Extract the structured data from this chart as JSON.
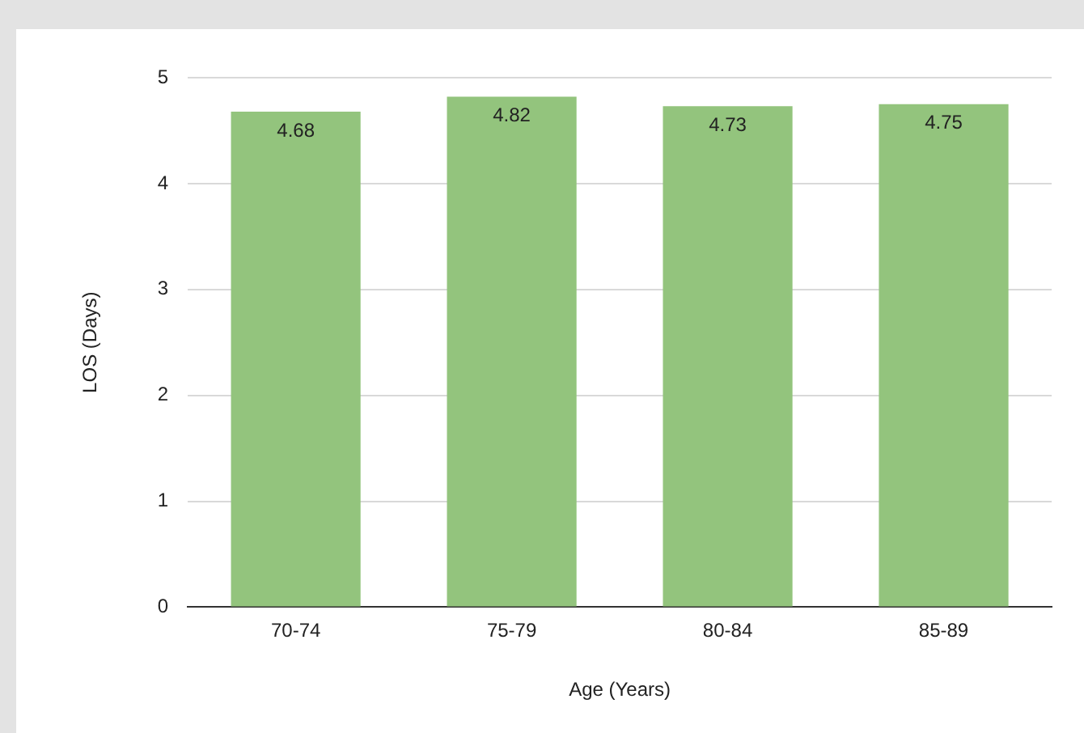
{
  "chart_data": {
    "type": "bar",
    "xlabel": "Age (Years)",
    "ylabel": "LOS (Days)",
    "categories": [
      "70-74",
      "75-79",
      "80-84",
      "85-89"
    ],
    "values": [
      4.68,
      4.82,
      4.73,
      4.75
    ],
    "color": "#93c47d",
    "ylim": [
      0,
      5
    ],
    "yticks": [
      0,
      1,
      2,
      3,
      4,
      5
    ],
    "grid": "y",
    "data_labels": true
  }
}
